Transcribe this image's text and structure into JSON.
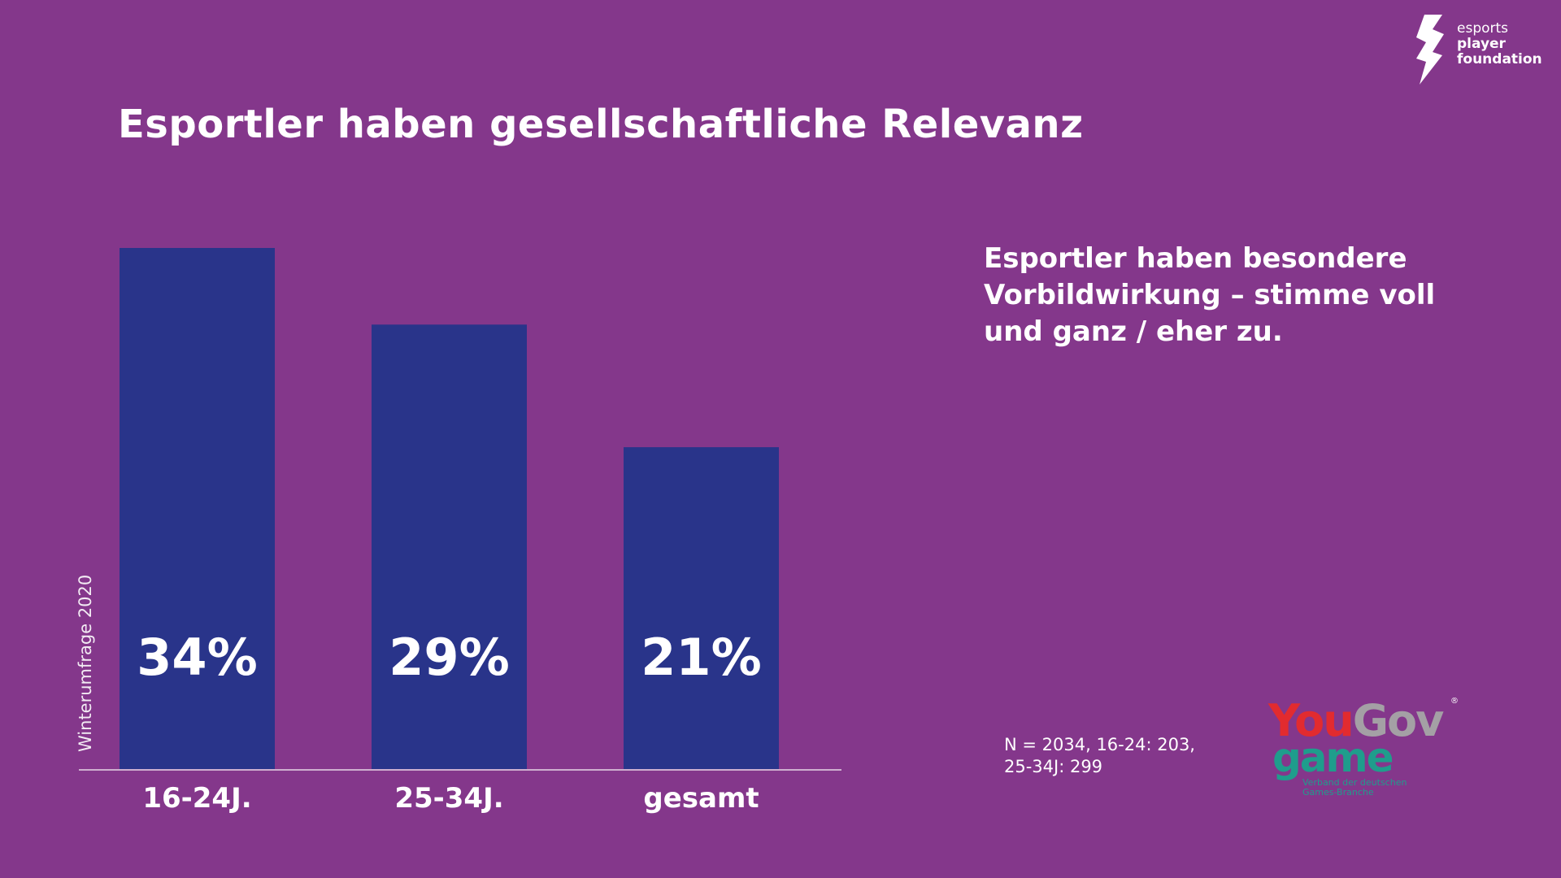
{
  "title": "Esportler haben gesellschaftliche Relevanz",
  "brand": {
    "line1": "esports",
    "line2": "player",
    "line3": "foundation"
  },
  "side_note": "Esportler haben besondere Vorbildwirkung – stimme voll und ganz / eher zu.",
  "footnote_line1": "N = 2034, 16-24: 203,",
  "footnote_line2": "25-34J: 299",
  "vertical_label": "Winterumfrage 2020",
  "yougov": {
    "you": "You",
    "gov": "Gov",
    "reg": "®",
    "game": "game",
    "verband_line1": "Verband der deutschen",
    "verband_line2": "Games-Branche"
  },
  "colors": {
    "background": "#84378b",
    "bar": "#29348a",
    "text": "#ffffff"
  },
  "chart_data": {
    "type": "bar",
    "categories": [
      "16-24J.",
      "25-34J.",
      "gesamt"
    ],
    "values": [
      34,
      29,
      21
    ],
    "data_labels": [
      "34%",
      "29%",
      "21%"
    ],
    "ylim": [
      0,
      34
    ]
  }
}
